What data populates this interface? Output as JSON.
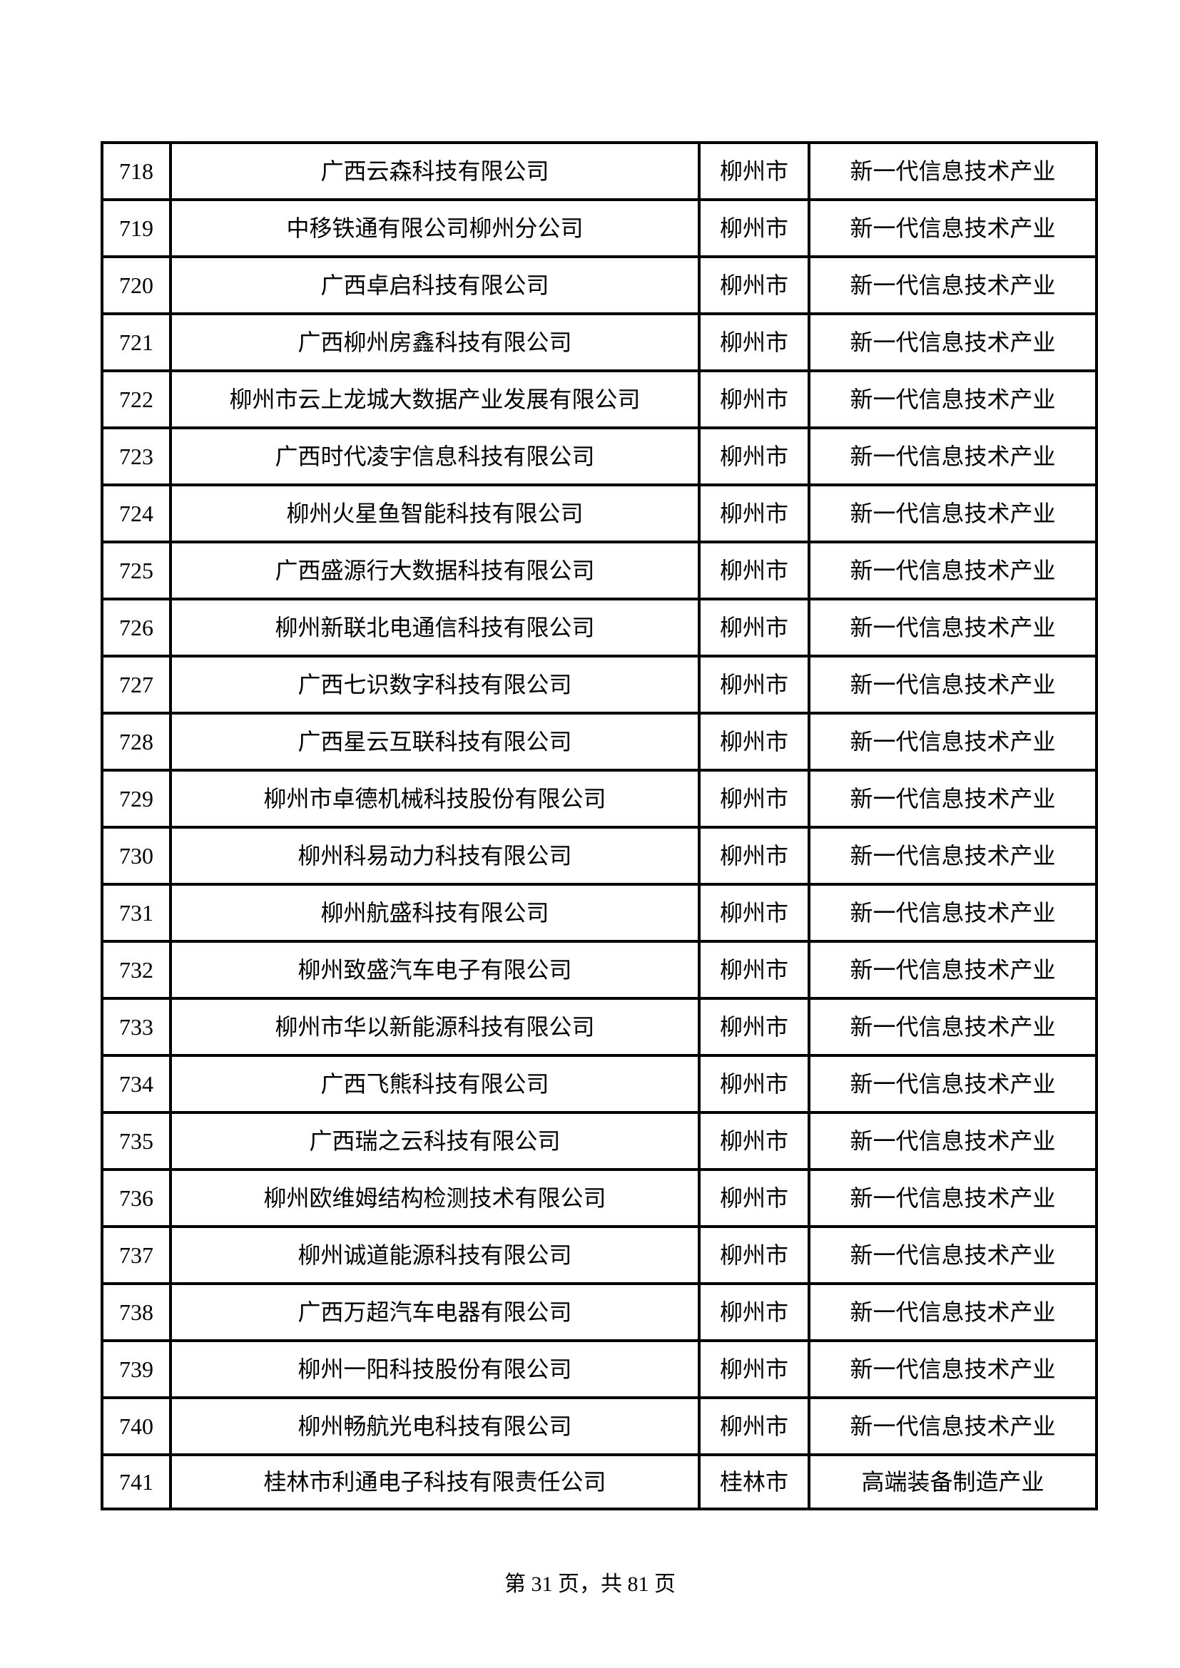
{
  "table": {
    "rows": [
      {
        "no": "718",
        "company": "广西云森科技有限公司",
        "city": "柳州市",
        "industry": "新一代信息技术产业"
      },
      {
        "no": "719",
        "company": "中移铁通有限公司柳州分公司",
        "city": "柳州市",
        "industry": "新一代信息技术产业"
      },
      {
        "no": "720",
        "company": "广西卓启科技有限公司",
        "city": "柳州市",
        "industry": "新一代信息技术产业"
      },
      {
        "no": "721",
        "company": "广西柳州房鑫科技有限公司",
        "city": "柳州市",
        "industry": "新一代信息技术产业"
      },
      {
        "no": "722",
        "company": "柳州市云上龙城大数据产业发展有限公司",
        "city": "柳州市",
        "industry": "新一代信息技术产业"
      },
      {
        "no": "723",
        "company": "广西时代凌宇信息科技有限公司",
        "city": "柳州市",
        "industry": "新一代信息技术产业"
      },
      {
        "no": "724",
        "company": "柳州火星鱼智能科技有限公司",
        "city": "柳州市",
        "industry": "新一代信息技术产业"
      },
      {
        "no": "725",
        "company": "广西盛源行大数据科技有限公司",
        "city": "柳州市",
        "industry": "新一代信息技术产业"
      },
      {
        "no": "726",
        "company": "柳州新联北电通信科技有限公司",
        "city": "柳州市",
        "industry": "新一代信息技术产业"
      },
      {
        "no": "727",
        "company": "广西七识数字科技有限公司",
        "city": "柳州市",
        "industry": "新一代信息技术产业"
      },
      {
        "no": "728",
        "company": "广西星云互联科技有限公司",
        "city": "柳州市",
        "industry": "新一代信息技术产业"
      },
      {
        "no": "729",
        "company": "柳州市卓德机械科技股份有限公司",
        "city": "柳州市",
        "industry": "新一代信息技术产业"
      },
      {
        "no": "730",
        "company": "柳州科易动力科技有限公司",
        "city": "柳州市",
        "industry": "新一代信息技术产业"
      },
      {
        "no": "731",
        "company": "柳州航盛科技有限公司",
        "city": "柳州市",
        "industry": "新一代信息技术产业"
      },
      {
        "no": "732",
        "company": "柳州致盛汽车电子有限公司",
        "city": "柳州市",
        "industry": "新一代信息技术产业"
      },
      {
        "no": "733",
        "company": "柳州市华以新能源科技有限公司",
        "city": "柳州市",
        "industry": "新一代信息技术产业"
      },
      {
        "no": "734",
        "company": "广西飞熊科技有限公司",
        "city": "柳州市",
        "industry": "新一代信息技术产业"
      },
      {
        "no": "735",
        "company": "广西瑞之云科技有限公司",
        "city": "柳州市",
        "industry": "新一代信息技术产业"
      },
      {
        "no": "736",
        "company": "柳州欧维姆结构检测技术有限公司",
        "city": "柳州市",
        "industry": "新一代信息技术产业"
      },
      {
        "no": "737",
        "company": "柳州诚道能源科技有限公司",
        "city": "柳州市",
        "industry": "新一代信息技术产业"
      },
      {
        "no": "738",
        "company": "广西万超汽车电器有限公司",
        "city": "柳州市",
        "industry": "新一代信息技术产业"
      },
      {
        "no": "739",
        "company": "柳州一阳科技股份有限公司",
        "city": "柳州市",
        "industry": "新一代信息技术产业"
      },
      {
        "no": "740",
        "company": "柳州畅航光电科技有限公司",
        "city": "柳州市",
        "industry": "新一代信息技术产业"
      },
      {
        "no": "741",
        "company": "桂林市利通电子科技有限责任公司",
        "city": "桂林市",
        "industry": "高端装备制造产业"
      }
    ]
  },
  "footer": {
    "text": "第 31 页，共 81 页"
  },
  "colors": {
    "text": "#000000",
    "border": "#000000",
    "background": "#ffffff"
  }
}
